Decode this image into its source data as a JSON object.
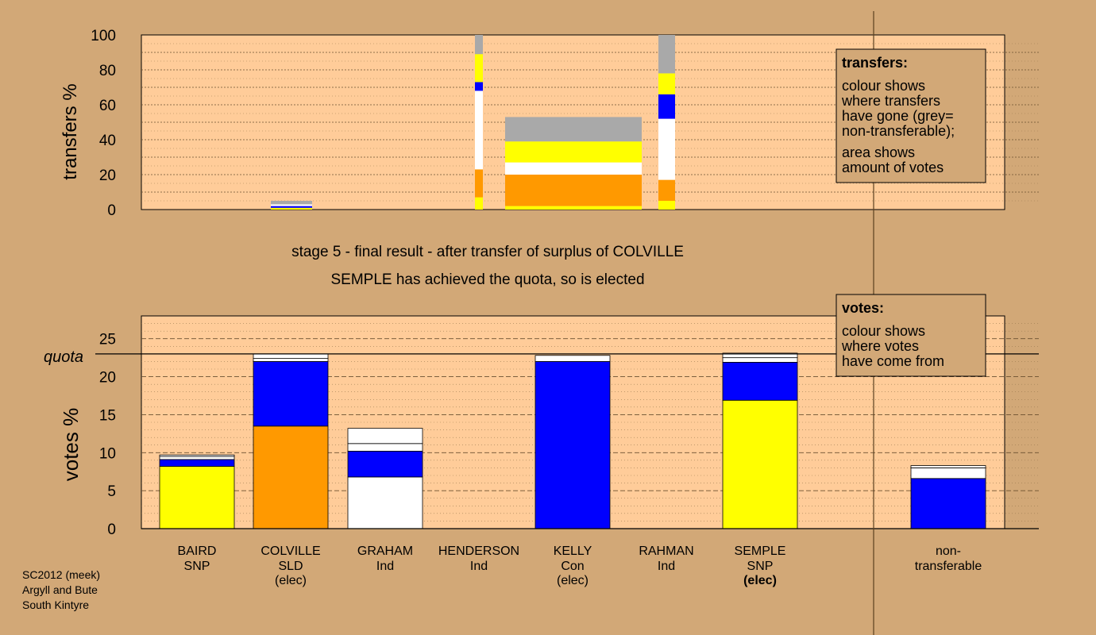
{
  "chart_data": [
    {
      "type": "bar",
      "name": "transfers",
      "ylabel": "transfers %",
      "ylim": [
        0,
        100
      ],
      "yticks": [
        0,
        20,
        40,
        60,
        80,
        100
      ],
      "columns": [
        {
          "candidate": "BAIRD",
          "segments": []
        },
        {
          "candidate": "COLVILLE",
          "segments": [
            {
              "color": "#FFFF00",
              "value": 1
            },
            {
              "color": "#0000FF",
              "value": 1
            },
            {
              "color": "#FFFFFF",
              "value": 1
            },
            {
              "color": "#A9A9A9",
              "value": 2
            }
          ]
        },
        {
          "candidate": "GRAHAM",
          "segments": [
            {
              "color": "#FFFF00",
              "value": 7
            },
            {
              "color": "#FF9900",
              "value": 16
            },
            {
              "color": "#FFFFFF",
              "value": 45
            },
            {
              "color": "#0000FF",
              "value": 5
            },
            {
              "color": "#FFFF00",
              "value": 16
            },
            {
              "color": "#A9A9A9",
              "value": 11
            }
          ]
        },
        {
          "candidate": "HENDERSON",
          "segments": [
            {
              "color": "#FFFF00",
              "value": 2
            },
            {
              "color": "#FF9900",
              "value": 18
            },
            {
              "color": "#FFFFFF",
              "value": 7
            },
            {
              "color": "#FFFF00",
              "value": 12
            },
            {
              "color": "#A9A9A9",
              "value": 14
            }
          ]
        },
        {
          "candidate": "RAHMAN",
          "segments": [
            {
              "color": "#FFFF00",
              "value": 5
            },
            {
              "color": "#FF9900",
              "value": 12
            },
            {
              "color": "#FFFFFF",
              "value": 35
            },
            {
              "color": "#0000FF",
              "value": 14
            },
            {
              "color": "#FFFF00",
              "value": 12
            },
            {
              "color": "#A9A9A9",
              "value": 22
            }
          ]
        }
      ]
    },
    {
      "type": "bar",
      "name": "votes",
      "ylabel": "votes %",
      "ylim": [
        0,
        28
      ],
      "yticks": [
        0,
        5,
        10,
        15,
        20,
        25
      ],
      "quota": 23,
      "categories": [
        "BAIRD",
        "COLVILLE",
        "GRAHAM",
        "HENDERSON",
        "KELLY",
        "RAHMAN",
        "SEMPLE",
        "non-transferable"
      ],
      "bars": [
        {
          "candidate": "BAIRD",
          "segments": [
            {
              "color": "#FFFF00",
              "value": 8.2
            },
            {
              "color": "#0000FF",
              "value": 0.9
            },
            {
              "color": "#FFFFFF",
              "value": 0.4
            },
            {
              "color": "#FFFFFF",
              "value": 0.2
            }
          ]
        },
        {
          "candidate": "COLVILLE",
          "segments": [
            {
              "color": "#FF9900",
              "value": 13.5
            },
            {
              "color": "#0000FF",
              "value": 8.5
            },
            {
              "color": "#FFFFFF",
              "value": 0.4
            },
            {
              "color": "#FFFFFF",
              "value": 0.6
            }
          ]
        },
        {
          "candidate": "GRAHAM",
          "segments": [
            {
              "color": "#FFFFFF",
              "value": 6.8
            },
            {
              "color": "#0000FF",
              "value": 3.4
            },
            {
              "color": "#FFFFFF",
              "value": 1.0
            },
            {
              "color": "#FFFFFF",
              "value": 2.0
            }
          ]
        },
        {
          "candidate": "HENDERSON",
          "segments": []
        },
        {
          "candidate": "KELLY",
          "segments": [
            {
              "color": "#0000FF",
              "value": 22.0
            },
            {
              "color": "#FFFFFF",
              "value": 0.8
            }
          ]
        },
        {
          "candidate": "RAHMAN",
          "segments": []
        },
        {
          "candidate": "SEMPLE",
          "segments": [
            {
              "color": "#FFFF00",
              "value": 16.9
            },
            {
              "color": "#0000FF",
              "value": 5.0
            },
            {
              "color": "#FFFFFF",
              "value": 0.6
            },
            {
              "color": "#FFFFFF",
              "value": 0.6
            }
          ]
        },
        {
          "candidate": "non-transferable",
          "segments": [
            {
              "color": "#0000FF",
              "value": 6.6
            },
            {
              "color": "#FFFFFF",
              "value": 1.4
            },
            {
              "color": "#FFFFFF",
              "value": 0.3
            }
          ]
        }
      ]
    }
  ],
  "captions": {
    "stage": "stage 5 - final result - after transfer of surplus of COLVILLE",
    "elected": "SEMPLE has achieved the quota, so is elected"
  },
  "quota_label": "quota",
  "candidates": [
    {
      "name": "BAIRD",
      "party": "SNP",
      "status": ""
    },
    {
      "name": "COLVILLE",
      "party": "SLD",
      "status": "(elec)"
    },
    {
      "name": "GRAHAM",
      "party": "Ind",
      "status": ""
    },
    {
      "name": "HENDERSON",
      "party": "Ind",
      "status": ""
    },
    {
      "name": "KELLY",
      "party": "Con",
      "status": "(elec)"
    },
    {
      "name": "RAHMAN",
      "party": "Ind",
      "status": ""
    },
    {
      "name": "SEMPLE",
      "party": "SNP",
      "status": "(elec)"
    },
    {
      "name": "non-",
      "party": "transferable",
      "status": ""
    }
  ],
  "legend_transfers": {
    "title": "transfers:",
    "lines": [
      "colour shows",
      "where transfers",
      "have gone (grey=",
      "non-transferable);"
    ],
    "lines2": [
      "area shows",
      "amount of votes"
    ]
  },
  "legend_votes": {
    "title": "votes:",
    "lines": [
      "colour shows",
      "where votes",
      "have come from"
    ]
  },
  "footer": [
    "SC2012 (meek)",
    "Argyll and Bute",
    "South Kintyre"
  ]
}
